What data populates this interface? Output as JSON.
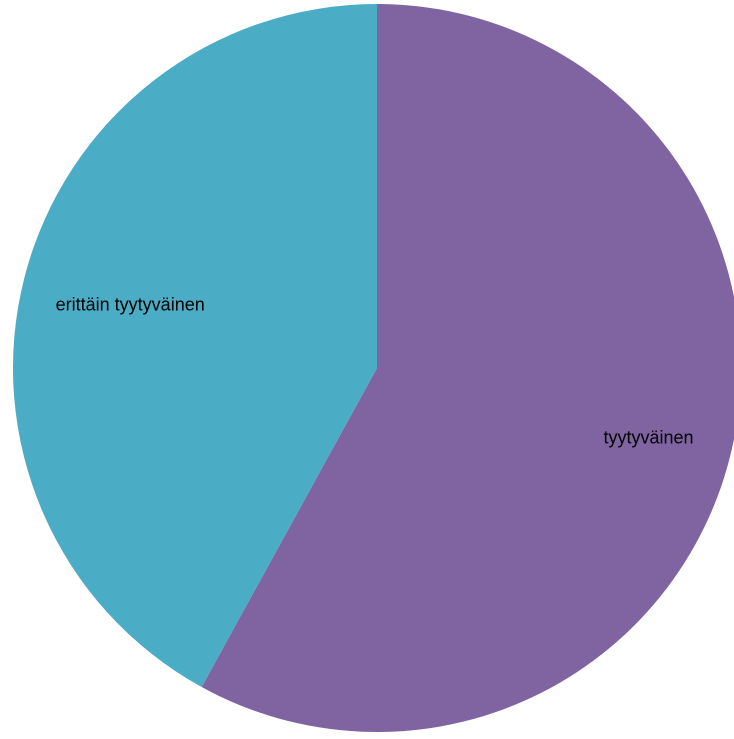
{
  "chart_data": {
    "type": "pie",
    "title": "",
    "categories": [
      "tyytyväinen",
      "erittäin tyytyväinen"
    ],
    "values": [
      58,
      42
    ],
    "unit": "%",
    "start_position": "12 o'clock",
    "direction": "clockwise",
    "legend": "none",
    "data_labels": "category names inside slices",
    "colors": [
      "#8064A2",
      "#4BACC6"
    ]
  }
}
